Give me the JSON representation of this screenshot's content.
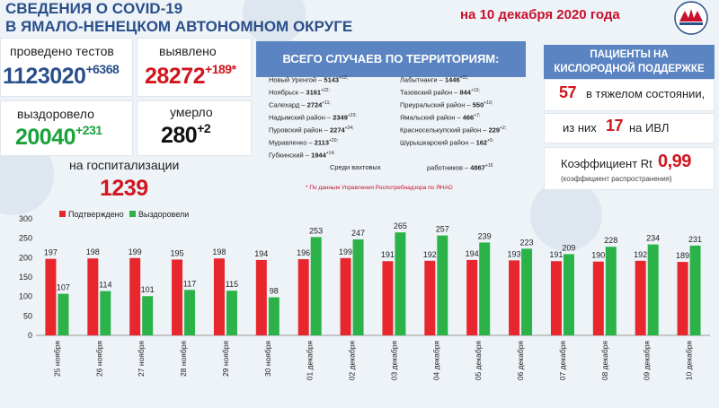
{
  "header": {
    "title_line1": "СВЕДЕНИЯ О COVID-19",
    "title_line2": "В ЯМАЛО-НЕНЕЦКОМ АВТОНОМНОМ ОКРУГЕ",
    "date": "на 10 декабря 2020 года"
  },
  "stats": {
    "tests_label": "проведено тестов",
    "tests_value": "1123020",
    "tests_delta": "+6368",
    "detected_label": "выявлено",
    "detected_value": "28272",
    "detected_delta": "+189*",
    "recovered_label": "выздоровело",
    "recovered_value": "20040",
    "recovered_delta": "+231",
    "died_label": "умерло",
    "died_value": "280",
    "died_delta": "+2",
    "hosp_label": "на госпитализации",
    "hosp_value": "1239"
  },
  "territories": {
    "heading": "ВСЕГО СЛУЧАЕВ ПО ТЕРРИТОРИЯМ:",
    "left": [
      {
        "name": "Новый Уренгой – ",
        "value": "5143",
        "delta": "+13;"
      },
      {
        "name": "Ноябрьск – ",
        "value": "3161",
        "delta": "+22;"
      },
      {
        "name": "Салехард – ",
        "value": "2724",
        "delta": "+11;"
      },
      {
        "name": "Надымский район – ",
        "value": "2349",
        "delta": "+23;"
      },
      {
        "name": "Пуровский район – ",
        "value": "2274",
        "delta": "+24;"
      },
      {
        "name": "Муравленко – ",
        "value": "2113",
        "delta": "+20;"
      },
      {
        "name": "Губкинский – ",
        "value": "1944",
        "delta": "+14;"
      }
    ],
    "right": [
      {
        "name": "Лабытнанги – ",
        "value": "1446",
        "delta": "+11;"
      },
      {
        "name": "Тазовский район – ",
        "value": "844",
        "delta": "+13;"
      },
      {
        "name": "Приуральский район – ",
        "value": "550",
        "delta": "+10;"
      },
      {
        "name": "Ямальский район – ",
        "value": "466",
        "delta": "+7;"
      },
      {
        "name": "Красноселькупский район – ",
        "value": "229",
        "delta": "+2;"
      },
      {
        "name": "Шурышкарский район – ",
        "value": "162",
        "delta": "+5;"
      }
    ],
    "shift_label": "Среди вахтовых",
    "shift_label2": "работников – ",
    "shift_value": "4867",
    "shift_delta": "+15",
    "footnote": "* По данным Управления Роспотребнадзора по ЯНАО"
  },
  "oxygen": {
    "heading_line1": "ПАЦИЕНТЫ НА",
    "heading_line2": "КИСЛОРОДНОЙ ПОДДЕРЖКЕ",
    "severe_value": "57",
    "severe_label": "в тяжелом состоянии,",
    "ivl_prefix": "из них",
    "ivl_value": "17",
    "ivl_label": "на ИВЛ",
    "rt_label": "Коэффициент Rt",
    "rt_value": "0,99",
    "rt_sub": "(коэффициент распространения)"
  },
  "colors": {
    "confirmed": "#e8262d",
    "recovered": "#2bb34a",
    "accent_blue": "#5b84c2"
  },
  "chart_data": {
    "type": "bar",
    "categories": [
      "25 ноября",
      "26 ноября",
      "27 ноября",
      "28 ноября",
      "29 ноября",
      "30 ноября",
      "01 декабря",
      "02 декабря",
      "03 декабря",
      "04 декабря",
      "05 декабря",
      "06 декабря",
      "07 декабря",
      "08 декабря",
      "09 декабря",
      "10 декабря"
    ],
    "series": [
      {
        "name": "Подтверждено",
        "values": [
          197,
          198,
          199,
          195,
          198,
          194,
          196,
          199,
          191,
          192,
          194,
          193,
          191,
          190,
          192,
          189
        ]
      },
      {
        "name": "Выздоровели",
        "values": [
          107,
          114,
          101,
          117,
          115,
          98,
          253,
          247,
          265,
          257,
          239,
          223,
          209,
          228,
          234,
          231
        ]
      }
    ],
    "ylim": [
      0,
      300
    ],
    "yticks": [
      0,
      50,
      100,
      150,
      200,
      250,
      300
    ],
    "grid": false,
    "legend": "top-left",
    "data_labels": true
  }
}
